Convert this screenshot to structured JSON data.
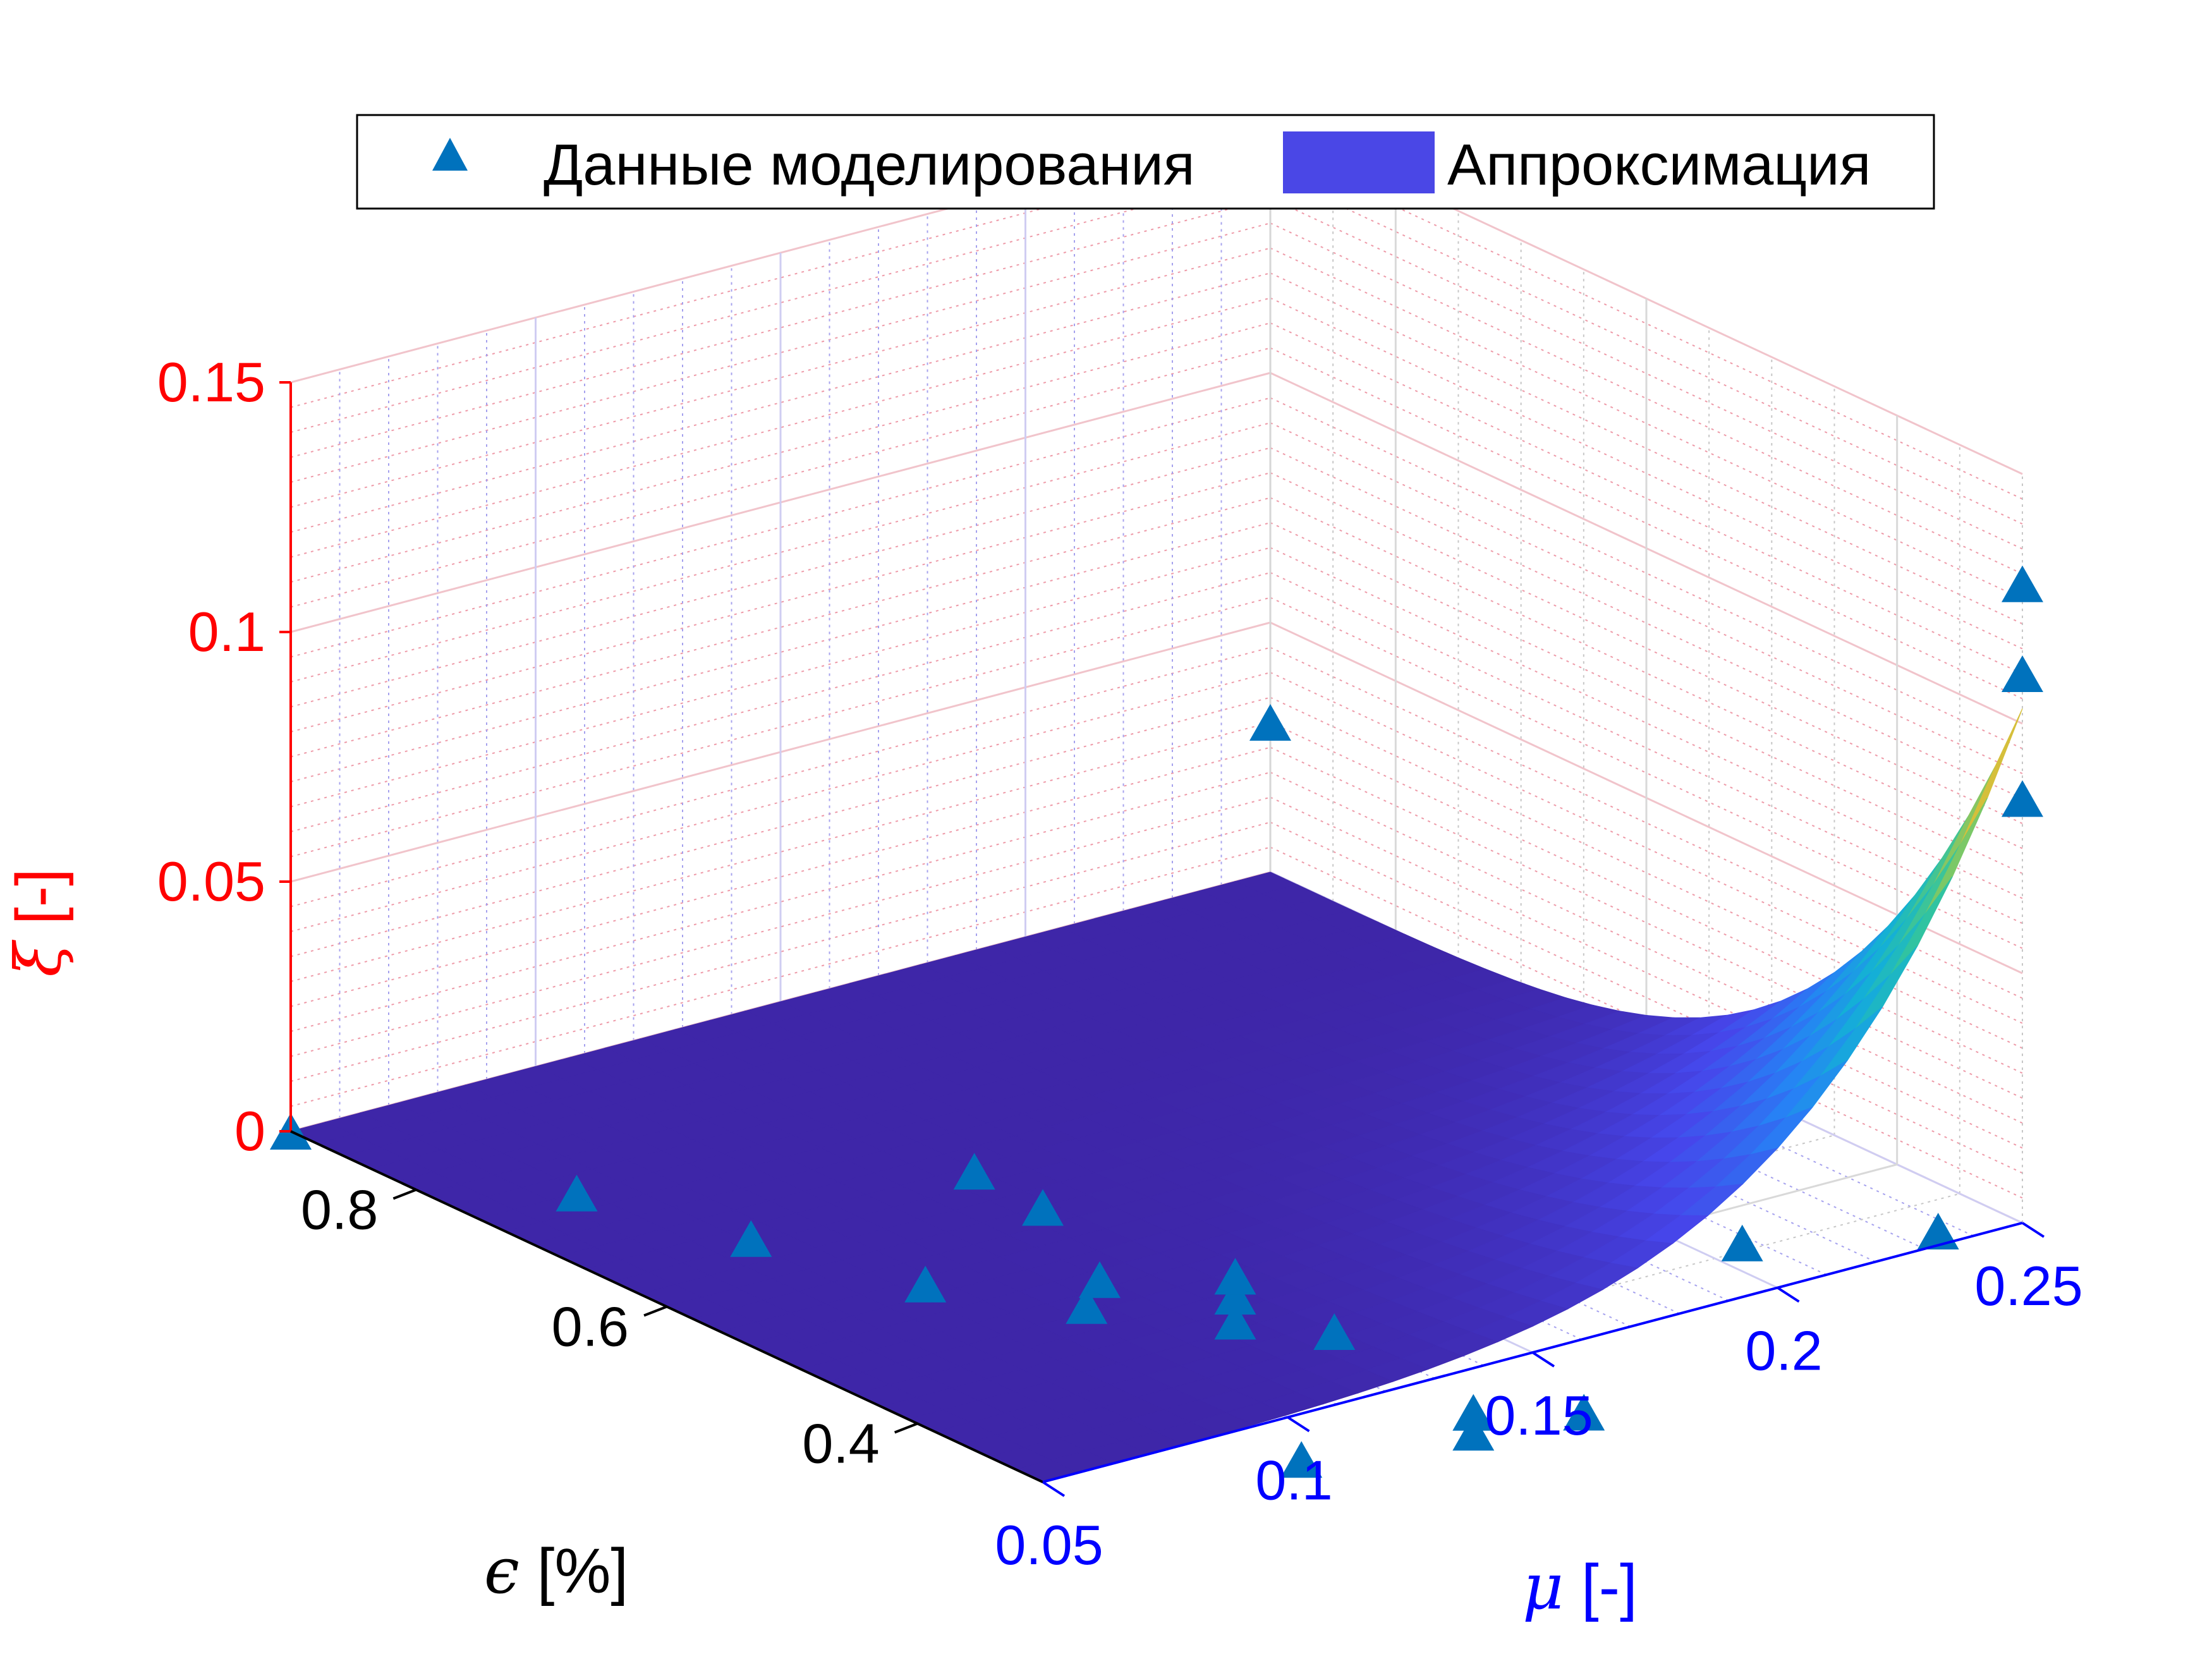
{
  "chart_data": {
    "type": "surface3d",
    "title": "",
    "legend": {
      "placement": "top",
      "entries": [
        {
          "label": "Данные моделирования",
          "marker": "triangle",
          "color": "#0072BD"
        },
        {
          "label": "Аппроксимация",
          "marker": "patch",
          "color": "#4A47E6"
        }
      ]
    },
    "axes": {
      "x": {
        "symbol": "μ",
        "unit": " [-]",
        "range": [
          0.05,
          0.25
        ],
        "ticks": [
          "0.05",
          "0.1",
          "0.15",
          "0.2",
          "0.25"
        ],
        "color": "#0000FF"
      },
      "y": {
        "symbol": "ϵ",
        "unit": " [%]",
        "range": [
          0.3,
          0.9
        ],
        "ticks": [
          "0.4",
          "0.6",
          "0.8"
        ],
        "color": "#000000"
      },
      "z": {
        "symbol": "ξ",
        "unit": " [-]",
        "range": [
          0,
          0.15
        ],
        "ticks": [
          "0",
          "0.05",
          "0.1",
          "0.15"
        ],
        "color": "#FF0000"
      }
    },
    "grid": true,
    "minor_grid": true,
    "colormap": "parula",
    "series": [
      {
        "name": "Данные моделирования",
        "kind": "scatter3d",
        "points": [
          {
            "x": 0.05,
            "y": 0.9,
            "z": 0.0
          },
          {
            "x": 0.05,
            "y": 0.3,
            "z": 0.055
          },
          {
            "x": 0.25,
            "y": 0.9,
            "z": 0.03
          },
          {
            "x": 0.1,
            "y": 0.55,
            "z": 0.02
          },
          {
            "x": 0.1,
            "y": 0.45,
            "z": 0.01
          },
          {
            "x": 0.07,
            "y": 0.75,
            "z": 0.0
          },
          {
            "x": 0.08,
            "y": 0.65,
            "z": 0.0
          },
          {
            "x": 0.09,
            "y": 0.55,
            "z": 0.0
          },
          {
            "x": 0.105,
            "y": 0.48,
            "z": 0.0
          },
          {
            "x": 0.12,
            "y": 0.42,
            "z": 0.0
          },
          {
            "x": 0.12,
            "y": 0.42,
            "z": 0.005
          },
          {
            "x": 0.12,
            "y": 0.42,
            "z": 0.009
          },
          {
            "x": 0.13,
            "y": 0.38,
            "z": 0.0
          },
          {
            "x": 0.09,
            "y": 0.25,
            "z": 0.0
          },
          {
            "x": 0.12,
            "y": 0.23,
            "z": 0.0
          },
          {
            "x": 0.12,
            "y": 0.23,
            "z": 0.004
          },
          {
            "x": 0.14,
            "y": 0.22,
            "z": 0.0
          },
          {
            "x": 0.18,
            "y": 0.25,
            "z": 0.02
          },
          {
            "x": 0.22,
            "y": 0.25,
            "z": 0.012
          },
          {
            "x": 0.25,
            "y": 0.3,
            "z": 0.085
          },
          {
            "x": 0.25,
            "y": 0.3,
            "z": 0.11
          },
          {
            "x": 0.25,
            "y": 0.3,
            "z": 0.128
          }
        ]
      },
      {
        "name": "Аппроксимация",
        "kind": "surface",
        "x_range": [
          0.05,
          0.25
        ],
        "y_range": [
          0.3,
          0.9
        ],
        "z_max": 0.103
      }
    ]
  }
}
